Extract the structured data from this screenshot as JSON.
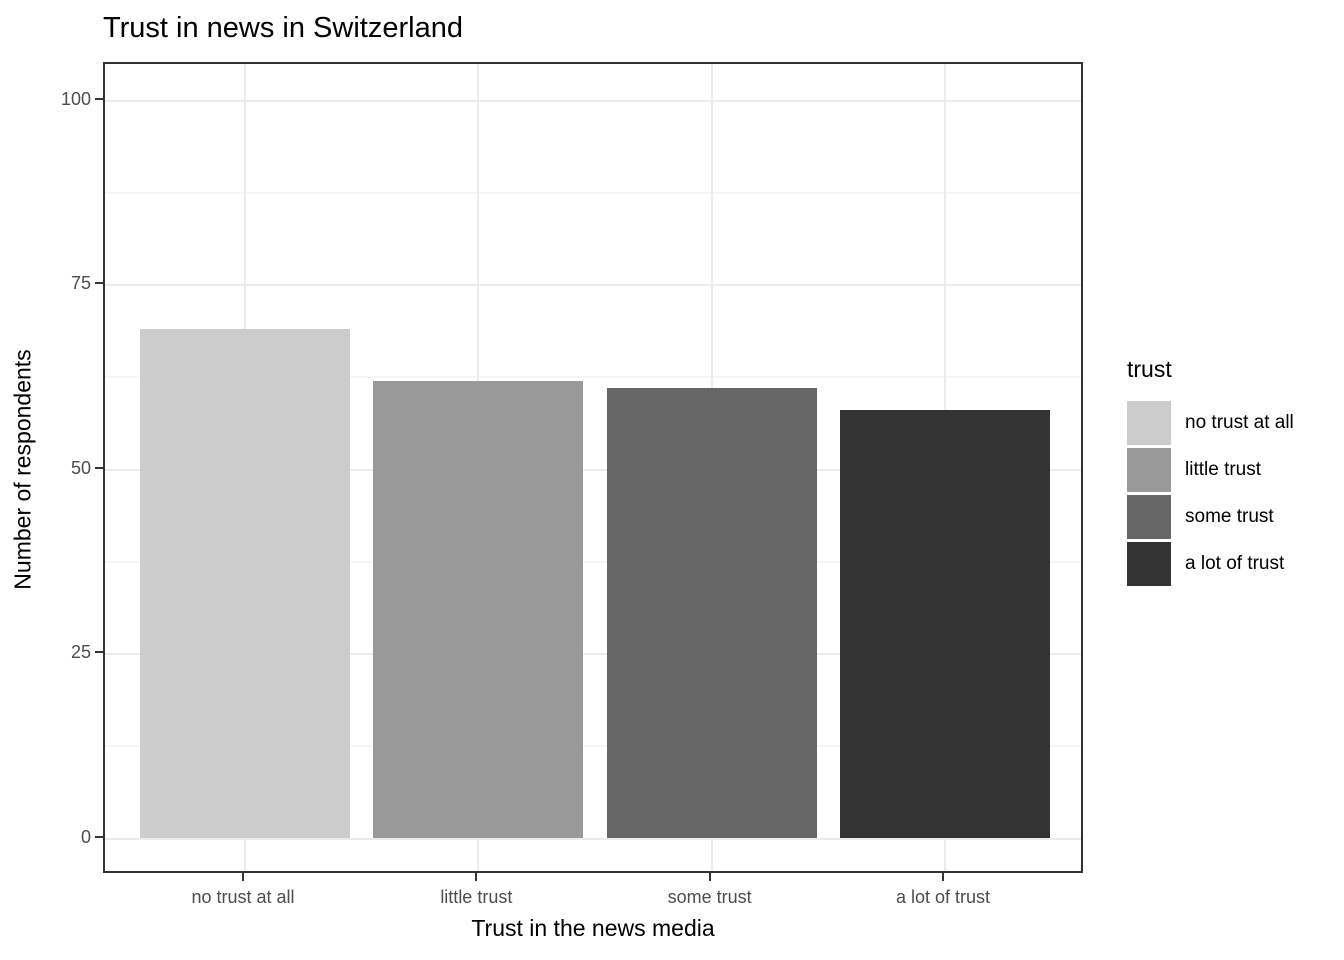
{
  "title": "Trust in news in Switzerland",
  "chart_data": {
    "type": "bar",
    "title": "Trust in news in Switzerland",
    "xlabel": "Trust in the news media",
    "ylabel": "Number of respondents",
    "categories": [
      "no trust at all",
      "little trust",
      "some trust",
      "a lot of trust"
    ],
    "values": [
      69,
      62,
      61,
      58
    ],
    "bar_colors": [
      "#cccccc",
      "#999999",
      "#666666",
      "#333333"
    ],
    "ylim": [
      0,
      100
    ],
    "yticks": [
      0,
      25,
      50,
      75,
      100
    ],
    "yticks_minor": [
      12.5,
      37.5,
      62.5,
      87.5
    ],
    "grid": true,
    "legend": {
      "title": "trust",
      "position": "right",
      "entries": [
        {
          "label": "no trust at all",
          "color": "#cccccc"
        },
        {
          "label": "little trust",
          "color": "#999999"
        },
        {
          "label": "some trust",
          "color": "#666666"
        },
        {
          "label": "a lot of trust",
          "color": "#333333"
        }
      ]
    }
  },
  "colors": {
    "background": "#ffffff",
    "panel_border": "#333333",
    "grid_major": "#ebebeb",
    "grid_minor": "#f5f5f5",
    "tick_text": "#4d4d4d",
    "axis_text": "#000000"
  }
}
